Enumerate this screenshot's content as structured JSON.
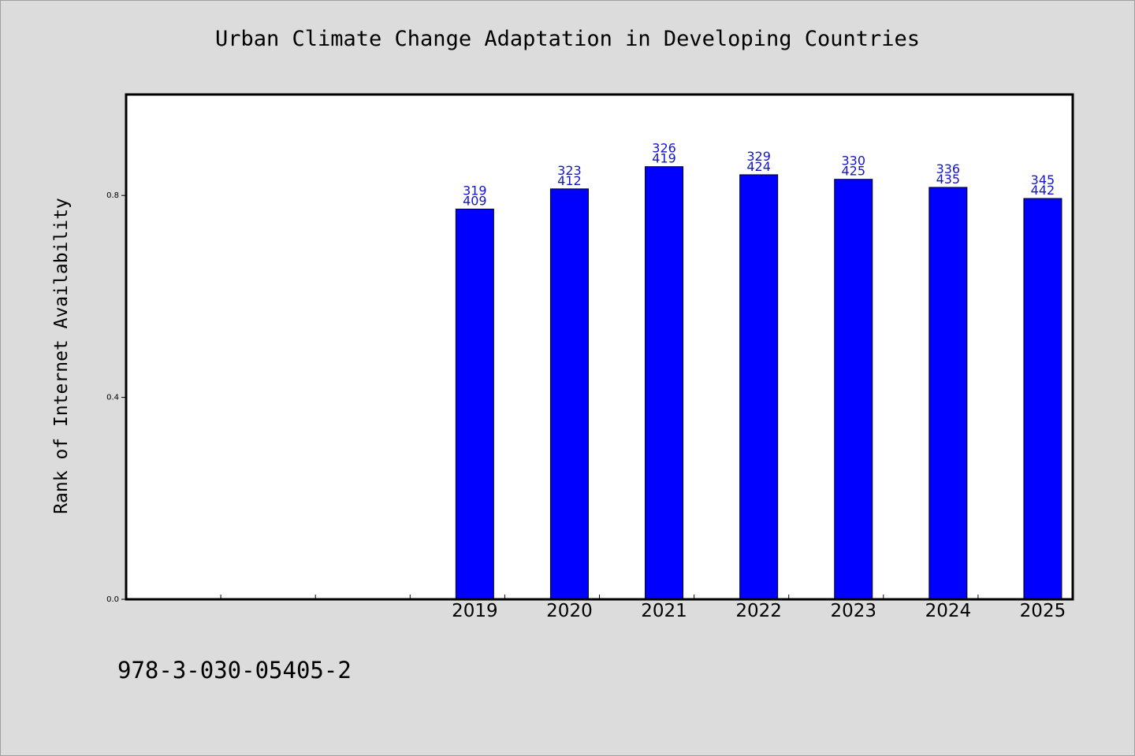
{
  "chart_data": {
    "type": "bar",
    "title": "Urban Climate Change Adaptation in Developing Countries",
    "xlabel": "",
    "ylabel": "Rank of Internet Availability",
    "categories": [
      "",
      "",
      "",
      "2019",
      "2020",
      "2021",
      "2022",
      "2023",
      "2024",
      "2025"
    ],
    "values": [
      null,
      null,
      null,
      0.773,
      0.813,
      0.857,
      0.841,
      0.832,
      0.816,
      0.794
    ],
    "data_labels": [
      [
        "",
        ""
      ],
      [
        "",
        ""
      ],
      [
        "",
        ""
      ],
      [
        "319",
        "409"
      ],
      [
        "323",
        "412"
      ],
      [
        "326",
        "419"
      ],
      [
        "329",
        "424"
      ],
      [
        "330",
        "425"
      ],
      [
        "336",
        "435"
      ],
      [
        "345",
        "442"
      ]
    ],
    "ylim": [
      0,
      1.0
    ],
    "yticks": [
      0.0,
      0.4,
      0.8
    ],
    "ytick_labels": [
      "0.0",
      "0.4",
      "0.8"
    ],
    "grid": false,
    "colors": {
      "bar": "#0000ff",
      "bar_edge": "#000000",
      "label": "#1414cc",
      "plot_bg": "#ffffff",
      "page_bg": "#dcdcdc"
    }
  },
  "footer_code": "978-3-030-05405-2"
}
